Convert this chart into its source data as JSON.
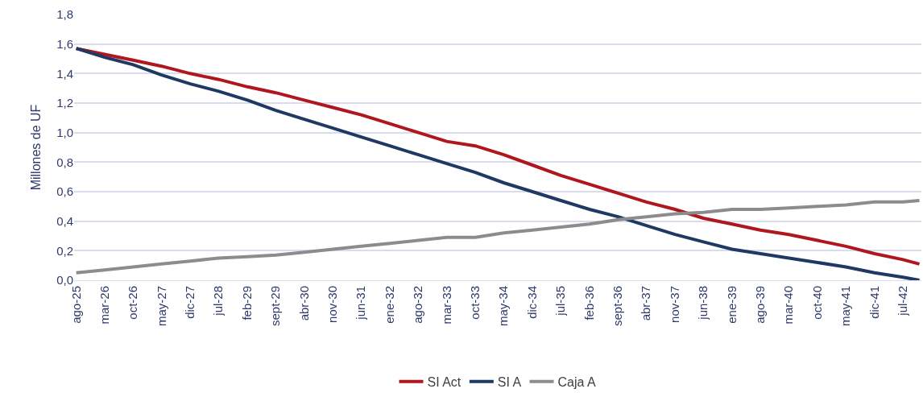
{
  "chart_data": {
    "type": "line",
    "ylabel": "Millones de UF",
    "x": [
      "2025-08",
      "2026-03",
      "2026-10",
      "2027-05",
      "2027-12",
      "2028-07",
      "2029-02",
      "2029-09",
      "2030-04",
      "2030-11",
      "2031-06",
      "2032-01",
      "2032-08",
      "2033-03",
      "2033-10",
      "2034-05",
      "2034-12",
      "2035-07",
      "2036-02",
      "2036-09",
      "2037-04",
      "2037-11",
      "2038-06",
      "2039-01",
      "2039-08",
      "2040-03",
      "2040-10",
      "2041-05",
      "2041-12",
      "2042-07",
      "2042-11"
    ],
    "series": [
      {
        "name": "SI Act",
        "color": "#b0161e",
        "values": [
          1.57,
          1.53,
          1.49,
          1.45,
          1.4,
          1.36,
          1.31,
          1.27,
          1.22,
          1.17,
          1.12,
          1.06,
          1.0,
          0.94,
          0.91,
          0.85,
          0.78,
          0.71,
          0.65,
          0.59,
          0.53,
          0.48,
          0.42,
          0.38,
          0.34,
          0.31,
          0.27,
          0.23,
          0.18,
          0.14,
          0.11
        ]
      },
      {
        "name": "SI A",
        "color": "#203864",
        "values": [
          1.57,
          1.51,
          1.46,
          1.39,
          1.33,
          1.28,
          1.22,
          1.15,
          1.09,
          1.03,
          0.97,
          0.91,
          0.85,
          0.79,
          0.73,
          0.66,
          0.6,
          0.54,
          0.48,
          0.43,
          0.37,
          0.31,
          0.26,
          0.21,
          0.18,
          0.15,
          0.12,
          0.09,
          0.05,
          0.02,
          0.0
        ]
      },
      {
        "name": "Caja A",
        "color": "#8c8c8c",
        "values": [
          0.05,
          0.07,
          0.09,
          0.11,
          0.13,
          0.15,
          0.16,
          0.17,
          0.19,
          0.21,
          0.23,
          0.25,
          0.27,
          0.29,
          0.29,
          0.32,
          0.34,
          0.36,
          0.38,
          0.41,
          0.43,
          0.45,
          0.46,
          0.48,
          0.48,
          0.49,
          0.5,
          0.51,
          0.53,
          0.53,
          0.54
        ]
      }
    ],
    "xlim": [
      "2025-07-16",
      "2042-11-16"
    ],
    "xticks": [
      {
        "value": "2025-08",
        "label": "ago-25"
      },
      {
        "value": "2026-03",
        "label": "mar-26"
      },
      {
        "value": "2026-10",
        "label": "oct-26"
      },
      {
        "value": "2027-05",
        "label": "may-27"
      },
      {
        "value": "2027-12",
        "label": "dic-27"
      },
      {
        "value": "2028-07",
        "label": "jul-28"
      },
      {
        "value": "2029-02",
        "label": "feb-29"
      },
      {
        "value": "2029-09",
        "label": "sept-29"
      },
      {
        "value": "2030-04",
        "label": "abr-30"
      },
      {
        "value": "2030-11",
        "label": "nov-30"
      },
      {
        "value": "2031-06",
        "label": "jun-31"
      },
      {
        "value": "2032-01",
        "label": "ene-32"
      },
      {
        "value": "2032-08",
        "label": "ago-32"
      },
      {
        "value": "2033-03",
        "label": "mar-33"
      },
      {
        "value": "2033-10",
        "label": "oct-33"
      },
      {
        "value": "2034-05",
        "label": "may-34"
      },
      {
        "value": "2034-12",
        "label": "dic-34"
      },
      {
        "value": "2035-07",
        "label": "jul-35"
      },
      {
        "value": "2036-02",
        "label": "feb-36"
      },
      {
        "value": "2036-09",
        "label": "sept-36"
      },
      {
        "value": "2037-04",
        "label": "abr-37"
      },
      {
        "value": "2037-11",
        "label": "nov-37"
      },
      {
        "value": "2038-06",
        "label": "jun-38"
      },
      {
        "value": "2039-01",
        "label": "ene-39"
      },
      {
        "value": "2039-08",
        "label": "ago-39"
      },
      {
        "value": "2040-03",
        "label": "mar-40"
      },
      {
        "value": "2040-10",
        "label": "oct-40"
      },
      {
        "value": "2041-05",
        "label": "may-41"
      },
      {
        "value": "2041-12",
        "label": "dic-41"
      },
      {
        "value": "2042-07",
        "label": "jul-42"
      }
    ],
    "ylim": [
      0,
      1.8
    ],
    "yticks": [
      {
        "value": 0,
        "label": "0,0"
      },
      {
        "value": 0.2,
        "label": "0,2"
      },
      {
        "value": 0.4,
        "label": "0,4"
      },
      {
        "value": 0.6,
        "label": "0,6"
      },
      {
        "value": 0.8,
        "label": "0,8"
      },
      {
        "value": 1.0,
        "label": "1,0"
      },
      {
        "value": 1.2,
        "label": "1,2"
      },
      {
        "value": 1.4,
        "label": "1,4"
      },
      {
        "value": 1.6,
        "label": "1,6"
      },
      {
        "value": 1.8,
        "label": "1,8"
      }
    ],
    "grid": "y",
    "legend": "bottom",
    "marker": "none",
    "line_style": "solid"
  }
}
